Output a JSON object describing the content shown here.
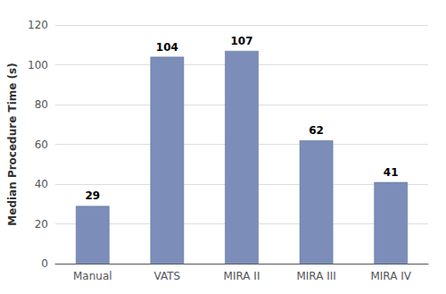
{
  "chart_data": {
    "type": "bar",
    "ylabel": "Median Procedure Time (s)",
    "categories": [
      "Manual",
      "VATS",
      "MIRA II",
      "MIRA III",
      "MIRA IV"
    ],
    "values": [
      29,
      104,
      107,
      62,
      41
    ],
    "color": "#7b8db8",
    "ylim": [
      0,
      120
    ],
    "yticks": [
      0,
      20,
      40,
      60,
      80,
      100,
      120
    ],
    "grid": true,
    "data_labels": true
  }
}
